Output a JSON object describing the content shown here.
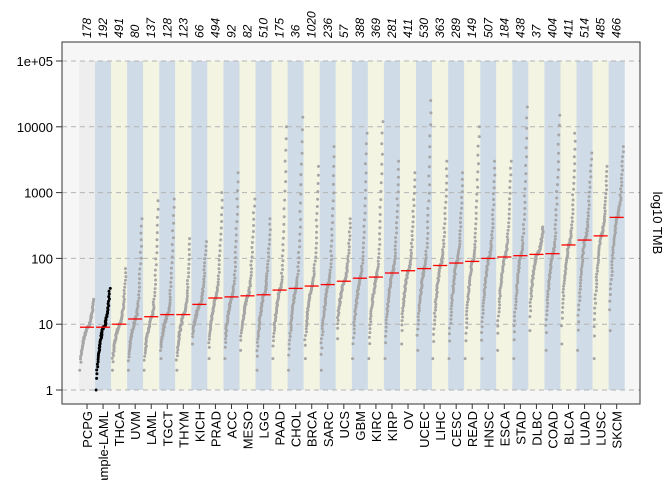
{
  "chart_data": {
    "type": "scatter",
    "title": "",
    "xlabel": "",
    "ylabel": "log10 TMB",
    "yscale": "log",
    "ylim": [
      1,
      100000
    ],
    "yticks": [
      1,
      10,
      100,
      1000,
      10000,
      100000
    ],
    "ytick_labels": [
      "1",
      "10",
      "100",
      "1000",
      "10000",
      "1e+05"
    ],
    "grid": true,
    "legend": "none",
    "highlight_category": "Example-LAML",
    "colors": {
      "points": "#a6a6a6",
      "highlight_points": "#000000",
      "median_line": "#ff0000",
      "band_even": "#f3f4e1",
      "band_odd": "#cfdbe6",
      "band_first": "#eeeeee",
      "grid": "#b4b4b4",
      "panel_background": "#f6f6f6"
    },
    "categories": [
      "PCPG",
      "Example-LAML",
      "THCA",
      "UVM",
      "LAML",
      "TGCT",
      "THYM",
      "KICH",
      "PRAD",
      "ACC",
      "MESO",
      "LGG",
      "PAAD",
      "CHOL",
      "BRCA",
      "SARC",
      "UCS",
      "GBM",
      "KIRC",
      "KIRP",
      "OV",
      "UCEC",
      "LIHC",
      "CESC",
      "READ",
      "HNSC",
      "ESCA",
      "STAD",
      "DLBC",
      "COAD",
      "BLCA",
      "LUAD",
      "LUSC",
      "SKCM"
    ],
    "sample_counts": [
      "178",
      "192",
      "491",
      "80",
      "137",
      "128",
      "123",
      "66",
      "494",
      "92",
      "82",
      "510",
      "175",
      "36",
      "1020",
      "236",
      "57",
      "388",
      "369",
      "281",
      "411",
      "530",
      "363",
      "289",
      "149",
      "507",
      "184",
      "438",
      "37",
      "404",
      "411",
      "514",
      "485",
      "466"
    ],
    "medians": [
      9,
      9,
      10,
      12,
      13,
      14,
      14,
      20,
      25,
      26,
      27,
      28,
      33,
      35,
      38,
      40,
      45,
      50,
      52,
      60,
      65,
      70,
      78,
      85,
      90,
      100,
      105,
      110,
      115,
      118,
      160,
      190,
      220,
      420
    ],
    "mins": [
      2,
      1,
      2,
      2,
      2,
      3,
      2,
      5,
      3,
      3,
      4,
      2,
      3,
      2,
      3,
      2,
      6,
      3,
      3,
      3,
      5,
      4,
      3,
      3,
      3,
      3,
      4,
      3,
      8,
      4,
      5,
      4,
      3,
      8
    ],
    "maxs": [
      24,
      35,
      70,
      400,
      750,
      800,
      200,
      180,
      1000,
      2000,
      800,
      400,
      10000,
      14000,
      2500,
      5000,
      400,
      8000,
      12000,
      3000,
      2000,
      25000,
      3000,
      2000,
      10000,
      3000,
      3000,
      20000,
      300,
      15000,
      8000,
      4000,
      2500,
      5000
    ]
  }
}
